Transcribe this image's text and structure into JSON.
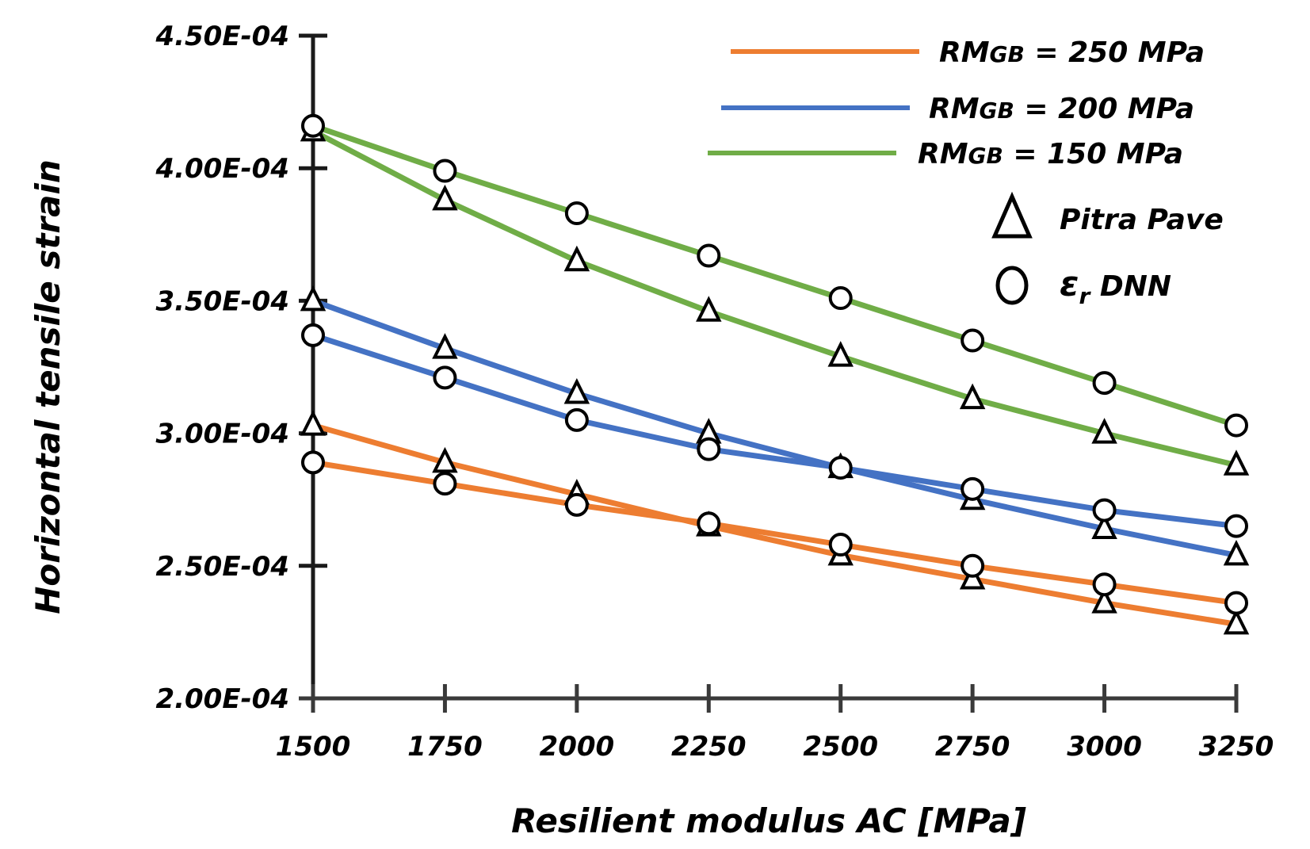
{
  "chart_data": {
    "type": "line",
    "title": "",
    "xlabel": "Resilient modulus AC [MPa]",
    "ylabel": "Horizontal tensile strain",
    "x": [
      1500,
      1750,
      2000,
      2250,
      2500,
      2750,
      3000,
      3250
    ],
    "x_tick_labels": [
      "1500",
      "1750",
      "2000",
      "2250",
      "2500",
      "2750",
      "3000",
      "3250"
    ],
    "y_tick_labels": [
      "2.00E-04",
      "2.50E-04",
      "3.00E-04",
      "3.50E-04",
      "4.00E-04",
      "4.50E-04"
    ],
    "y_ticks": [
      0.0002,
      0.00025,
      0.0003,
      0.00035,
      0.0004,
      0.00045
    ],
    "ylim": [
      0.0002,
      0.00045
    ],
    "grid": false,
    "legend_position": "top-right",
    "series": [
      {
        "name": "RMGB = 250 MPa",
        "method": "Pitra Pave",
        "color": "#ED7D31",
        "marker": "triangle",
        "values": [
          0.000303,
          0.000289,
          0.000277,
          0.000265,
          0.000254,
          0.000245,
          0.000236,
          0.000228
        ]
      },
      {
        "name": "RMGB = 250 MPa",
        "method": "εr DNN",
        "color": "#ED7D31",
        "marker": "circle",
        "values": [
          0.000289,
          0.000281,
          0.000273,
          0.000266,
          0.000258,
          0.00025,
          0.000243,
          0.000236
        ]
      },
      {
        "name": "RMGB = 200 MPa",
        "method": "Pitra Pave",
        "color": "#4472C4",
        "marker": "triangle",
        "values": [
          0.00035,
          0.000332,
          0.000315,
          0.0003,
          0.000287,
          0.000275,
          0.000264,
          0.000254
        ]
      },
      {
        "name": "RMGB = 200 MPa",
        "method": "εr DNN",
        "color": "#4472C4",
        "marker": "circle",
        "values": [
          0.000337,
          0.000321,
          0.000305,
          0.000294,
          0.000287,
          0.000279,
          0.000271,
          0.000265
        ]
      },
      {
        "name": "RMGB = 150 MPa",
        "method": "Pitra Pave",
        "color": "#70AD47",
        "marker": "triangle",
        "values": [
          0.000414,
          0.000388,
          0.000365,
          0.000346,
          0.000329,
          0.000313,
          0.0003,
          0.000288
        ]
      },
      {
        "name": "RMGB = 150 MPa",
        "method": "εr DNN",
        "color": "#70AD47",
        "marker": "circle",
        "values": [
          0.000416,
          0.000399,
          0.000383,
          0.000367,
          0.000351,
          0.000335,
          0.000319,
          0.000303
        ]
      }
    ],
    "legend": {
      "lines": [
        {
          "prefix": "RM",
          "sub": "GB",
          "suffix": " = 250 MPa",
          "color": "#ED7D31"
        },
        {
          "prefix": "RM",
          "sub": "GB",
          "suffix": " = 200 MPa",
          "color": "#4472C4"
        },
        {
          "prefix": "RM",
          "sub": "GB",
          "suffix": " = 150 MPa",
          "color": "#70AD47"
        }
      ],
      "markers": [
        {
          "symbol": "triangle",
          "label": "Pitra Pave"
        },
        {
          "symbol": "circle",
          "label_main": "ε",
          "label_sub": "r",
          "label_rest": " DNN"
        }
      ]
    }
  }
}
